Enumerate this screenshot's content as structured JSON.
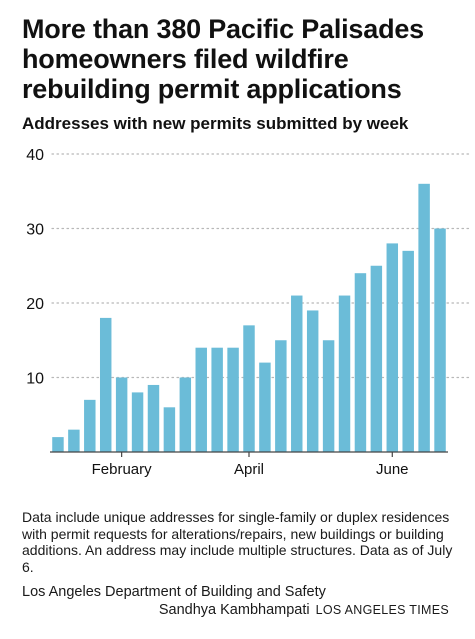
{
  "title": "More than 380 Pacific Palisades homeowners filed wildfire rebuilding permit applications",
  "subtitle": "Addresses with new permits submitted by week",
  "notes": "Data include unique addresses for single-family or duplex residences with permit requests for alterations/repairs, new buildings or building additions. An address may include multiple structures. Data as of July 6.",
  "source": "Los Angeles Department of Building and Safety",
  "credit": {
    "byline": "Sandhya Kambhampati",
    "organization": "Los Angeles Times"
  },
  "colors": {
    "bar": "#6bbcd8",
    "gridline": "#b8b8b8",
    "text": "#111111"
  },
  "chart_data": {
    "type": "bar",
    "title": "More than 380 Pacific Palisades homeowners filed wildfire rebuilding permit applications",
    "subtitle": "Addresses with new permits submitted by week",
    "xlabel": "",
    "ylabel": "",
    "ylim": [
      0,
      40
    ],
    "yticks": [
      10,
      20,
      30,
      40
    ],
    "grid": "horizontal dotted",
    "legend": "none",
    "month_labels": [
      {
        "label": "February",
        "bar_index": 4
      },
      {
        "label": "April",
        "bar_index": 12
      },
      {
        "label": "June",
        "bar_index": 21
      }
    ],
    "values": [
      2,
      3,
      7,
      18,
      10,
      8,
      9,
      6,
      10,
      14,
      14,
      14,
      17,
      12,
      15,
      21,
      19,
      15,
      21,
      24,
      25,
      28,
      27,
      36,
      30
    ]
  }
}
